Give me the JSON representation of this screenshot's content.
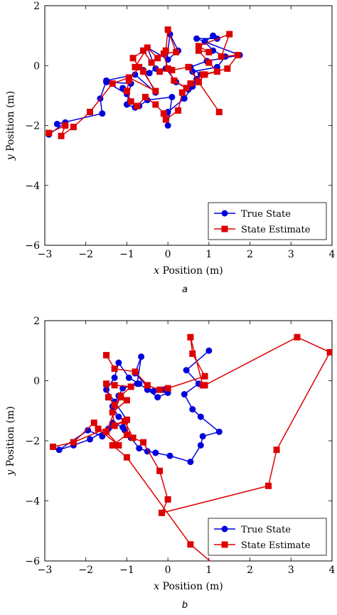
{
  "chart_data": [
    {
      "type": "line",
      "caption": "a",
      "xlabel_var": "x",
      "xlabel_rest": " Position (m)",
      "ylabel_var": "y",
      "ylabel_rest": " Position (m)",
      "xlim": [
        -3,
        4
      ],
      "ylim": [
        -6,
        2
      ],
      "xticks": [
        -3,
        -2,
        -1,
        0,
        1,
        2,
        3,
        4
      ],
      "yticks": [
        -6,
        -4,
        -2,
        0,
        2
      ],
      "legend_position": "bottom-right",
      "colors": {
        "true": "#0000dd",
        "estimate": "#dd0000"
      },
      "series": [
        {
          "name": "True State",
          "marker": "circle",
          "points": [
            [
              -2.9,
              -2.3
            ],
            [
              -2.5,
              -1.9
            ],
            [
              -2.7,
              -1.95
            ],
            [
              -1.6,
              -1.6
            ],
            [
              -1.65,
              -1.1
            ],
            [
              -1.5,
              -0.5
            ],
            [
              -0.8,
              -0.3
            ],
            [
              -0.3,
              -0.9
            ],
            [
              -0.6,
              -0.15
            ],
            [
              -0.45,
              -0.25
            ],
            [
              -0.3,
              -0.1
            ],
            [
              -0.5,
              0.6
            ],
            [
              0.0,
              0.2
            ],
            [
              0.25,
              0.5
            ],
            [
              0.05,
              1.05
            ],
            [
              -0.05,
              -0.1
            ],
            [
              0.2,
              -0.55
            ],
            [
              0.5,
              -0.8
            ],
            [
              0.7,
              -0.45
            ],
            [
              0.6,
              -0.2
            ],
            [
              1.2,
              -0.05
            ],
            [
              1.4,
              0.3
            ],
            [
              1.1,
              0.5
            ],
            [
              0.9,
              0.8
            ],
            [
              1.1,
              1.0
            ],
            [
              1.2,
              0.9
            ],
            [
              0.7,
              0.9
            ],
            [
              1.75,
              0.35
            ],
            [
              0.95,
              0.15
            ],
            [
              0.55,
              -0.05
            ],
            [
              0.8,
              -0.3
            ],
            [
              0.6,
              -0.7
            ],
            [
              0.4,
              -1.1
            ],
            [
              0.0,
              -1.55
            ],
            [
              0.0,
              -2.0
            ],
            [
              0.1,
              -1.05
            ],
            [
              -0.5,
              -1.15
            ],
            [
              -0.7,
              -1.35
            ],
            [
              -0.8,
              -1.4
            ],
            [
              -1.0,
              -1.3
            ],
            [
              -0.9,
              -0.6
            ],
            [
              -1.5,
              -0.55
            ],
            [
              -1.0,
              -0.95
            ],
            [
              -1.1,
              -0.75
            ]
          ]
        },
        {
          "name": "State Estimate",
          "marker": "square",
          "points": [
            [
              -2.9,
              -2.25
            ],
            [
              -2.5,
              -2.0
            ],
            [
              -2.6,
              -2.35
            ],
            [
              -2.3,
              -2.05
            ],
            [
              -1.9,
              -1.55
            ],
            [
              -1.35,
              -0.6
            ],
            [
              -0.95,
              -0.4
            ],
            [
              -0.3,
              -0.85
            ],
            [
              -0.6,
              -0.2
            ],
            [
              -0.8,
              -0.05
            ],
            [
              -0.5,
              0.6
            ],
            [
              -0.25,
              0.25
            ],
            [
              -0.05,
              0.5
            ],
            [
              0.0,
              1.2
            ],
            [
              0.2,
              0.45
            ],
            [
              -0.1,
              0.4
            ],
            [
              0.0,
              -0.1
            ],
            [
              0.15,
              -0.5
            ],
            [
              0.45,
              -0.75
            ],
            [
              0.75,
              -0.55
            ],
            [
              0.9,
              -0.3
            ],
            [
              1.2,
              -0.2
            ],
            [
              1.0,
              0.1
            ],
            [
              0.75,
              0.5
            ],
            [
              1.0,
              0.45
            ],
            [
              0.75,
              0.65
            ],
            [
              1.5,
              1.05
            ],
            [
              1.3,
              0.3
            ],
            [
              1.7,
              0.35
            ],
            [
              1.45,
              -0.1
            ],
            [
              0.85,
              -0.3
            ],
            [
              0.55,
              -0.6
            ],
            [
              0.35,
              -0.9
            ],
            [
              0.25,
              -1.5
            ],
            [
              -0.05,
              -1.8
            ],
            [
              -0.1,
              -1.6
            ],
            [
              -0.3,
              -1.3
            ],
            [
              -0.55,
              -1.05
            ],
            [
              -0.75,
              -1.35
            ],
            [
              -0.9,
              -1.2
            ],
            [
              -1.0,
              -0.85
            ],
            [
              -0.95,
              -0.5
            ],
            [
              -0.7,
              -0.05
            ],
            [
              -0.85,
              0.25
            ],
            [
              -0.6,
              0.5
            ],
            [
              -0.4,
              0.1
            ],
            [
              -0.2,
              -0.2
            ],
            [
              0.1,
              -0.15
            ],
            [
              0.5,
              -0.05
            ],
            [
              1.25,
              -1.55
            ]
          ]
        }
      ]
    },
    {
      "type": "line",
      "caption": "b",
      "xlabel_var": "x",
      "xlabel_rest": " Position (m)",
      "ylabel_var": "y",
      "ylabel_rest": " Position (m)",
      "xlim": [
        -3,
        4
      ],
      "ylim": [
        -6,
        2
      ],
      "xticks": [
        -3,
        -2,
        -1,
        0,
        1,
        2,
        3,
        4
      ],
      "yticks": [
        -6,
        -4,
        -2,
        0,
        2
      ],
      "legend_position": "bottom-right",
      "colors": {
        "true": "#0000dd",
        "estimate": "#dd0000"
      },
      "series": [
        {
          "name": "True State",
          "marker": "circle",
          "points": [
            [
              1.0,
              1.0
            ],
            [
              0.45,
              0.35
            ],
            [
              0.75,
              -0.1
            ],
            [
              0.4,
              -0.45
            ],
            [
              0.6,
              -0.95
            ],
            [
              0.8,
              -1.2
            ],
            [
              1.25,
              -1.7
            ],
            [
              0.85,
              -1.85
            ],
            [
              0.8,
              -2.15
            ],
            [
              0.55,
              -2.7
            ],
            [
              0.05,
              -2.5
            ],
            [
              -0.3,
              -2.4
            ],
            [
              -0.5,
              -2.35
            ],
            [
              -0.7,
              -2.25
            ],
            [
              -0.9,
              -1.9
            ],
            [
              -1.05,
              -1.65
            ],
            [
              -1.05,
              -1.35
            ],
            [
              -1.2,
              -1.2
            ],
            [
              -1.35,
              -0.85
            ],
            [
              -1.2,
              -0.5
            ],
            [
              -1.1,
              -0.25
            ],
            [
              -0.75,
              -0.1
            ],
            [
              -0.65,
              0.8
            ],
            [
              -0.8,
              0.25
            ],
            [
              -0.5,
              -0.2
            ],
            [
              -0.35,
              -0.35
            ],
            [
              -0.1,
              -0.3
            ],
            [
              0.0,
              -0.4
            ],
            [
              -0.25,
              -0.55
            ],
            [
              -0.5,
              -0.3
            ],
            [
              -0.7,
              -0.1
            ],
            [
              -0.95,
              0.1
            ],
            [
              -1.2,
              0.6
            ],
            [
              -1.3,
              0.1
            ],
            [
              -1.5,
              -0.3
            ],
            [
              -1.3,
              -0.7
            ],
            [
              -1.0,
              -1.3
            ],
            [
              -1.45,
              -1.6
            ],
            [
              -1.9,
              -1.95
            ],
            [
              -2.3,
              -2.15
            ],
            [
              -2.65,
              -2.3
            ],
            [
              -1.95,
              -1.65
            ],
            [
              -1.6,
              -1.85
            ],
            [
              -1.35,
              -1.4
            ],
            [
              -1.1,
              -1.55
            ]
          ]
        },
        {
          "name": "State Estimate",
          "marker": "square",
          "points": [
            [
              -1.5,
              0.85
            ],
            [
              -1.3,
              0.4
            ],
            [
              -0.8,
              0.3
            ],
            [
              -0.5,
              -0.15
            ],
            [
              -0.2,
              -0.3
            ],
            [
              0.0,
              -0.25
            ],
            [
              0.9,
              0.15
            ],
            [
              0.6,
              0.9
            ],
            [
              0.55,
              1.45
            ],
            [
              0.85,
              -0.15
            ],
            [
              0.9,
              -0.15
            ],
            [
              3.15,
              1.45
            ],
            [
              3.95,
              0.95
            ],
            [
              2.65,
              -2.3
            ],
            [
              2.45,
              -3.5
            ],
            [
              -0.15,
              -4.4
            ],
            [
              0.0,
              -3.95
            ],
            [
              -0.2,
              -3.0
            ],
            [
              -0.6,
              -2.05
            ],
            [
              -0.85,
              -1.9
            ],
            [
              -1.05,
              -1.35
            ],
            [
              -1.3,
              -1.5
            ],
            [
              -1.35,
              -1.05
            ],
            [
              -1.0,
              -0.65
            ],
            [
              -1.15,
              -0.55
            ],
            [
              -1.3,
              -0.8
            ],
            [
              -1.45,
              -0.55
            ],
            [
              -1.5,
              -0.1
            ],
            [
              -1.3,
              -0.15
            ],
            [
              -0.9,
              -0.2
            ],
            [
              -1.15,
              -0.5
            ],
            [
              -1.5,
              -1.7
            ],
            [
              -1.2,
              -2.15
            ],
            [
              -1.7,
              -1.6
            ],
            [
              -1.8,
              -1.4
            ],
            [
              -2.3,
              -2.05
            ],
            [
              -2.8,
              -2.2
            ],
            [
              -2.3,
              -2.05
            ],
            [
              -1.0,
              -1.3
            ],
            [
              -1.0,
              -1.8
            ],
            [
              -1.35,
              -2.15
            ],
            [
              -1.0,
              -2.55
            ],
            [
              0.55,
              -5.45
            ],
            [
              1.2,
              -6.2
            ]
          ]
        }
      ]
    }
  ]
}
